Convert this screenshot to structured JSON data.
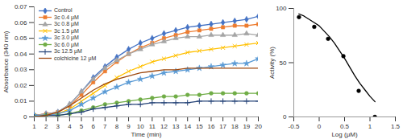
{
  "chart_data": [
    {
      "type": "line",
      "xlabel": "Time (min)",
      "ylabel": "Absorbance (340 nm)",
      "x": [
        1,
        2,
        3,
        4,
        5,
        6,
        7,
        8,
        9,
        10,
        11,
        12,
        13,
        14,
        15,
        16,
        17,
        18,
        19,
        20
      ],
      "xlim": [
        1,
        20
      ],
      "xticks": [
        1,
        2,
        3,
        4,
        5,
        6,
        7,
        8,
        9,
        10,
        11,
        12,
        13,
        14,
        15,
        16,
        17,
        18,
        19,
        20
      ],
      "ylim": [
        0,
        0.07
      ],
      "yticks": [
        0,
        0.01,
        0.02,
        0.03,
        0.04,
        0.05,
        0.06,
        0.07
      ],
      "grid": false,
      "legend": "top-left",
      "series": [
        {
          "name": "Control",
          "color": "#4472c4",
          "marker": "diamond",
          "values": [
            0.001,
            0.002,
            0.003,
            0.008,
            0.016,
            0.025,
            0.032,
            0.038,
            0.043,
            0.047,
            0.05,
            0.053,
            0.055,
            0.057,
            0.058,
            0.059,
            0.06,
            0.061,
            0.062,
            0.064
          ]
        },
        {
          "name": "3c 0.4 μM",
          "color": "#ed7d31",
          "marker": "square",
          "values": [
            0.001,
            0.002,
            0.003,
            0.007,
            0.014,
            0.022,
            0.029,
            0.035,
            0.04,
            0.044,
            0.047,
            0.05,
            0.052,
            0.054,
            0.055,
            0.056,
            0.057,
            0.058,
            0.058,
            0.059
          ]
        },
        {
          "name": "3c 0.8 μM",
          "color": "#a5a5a5",
          "marker": "triangle",
          "values": [
            0.001,
            0.002,
            0.003,
            0.008,
            0.016,
            0.024,
            0.031,
            0.036,
            0.04,
            0.043,
            0.046,
            0.048,
            0.05,
            0.051,
            0.051,
            0.052,
            0.052,
            0.052,
            0.053,
            0.052
          ]
        },
        {
          "name": "3c 1.5 μM",
          "color": "#ffc000",
          "marker": "times",
          "values": [
            0.001,
            0.001,
            0.002,
            0.005,
            0.01,
            0.015,
            0.02,
            0.025,
            0.029,
            0.032,
            0.035,
            0.037,
            0.039,
            0.041,
            0.042,
            0.043,
            0.044,
            0.045,
            0.046,
            0.047
          ]
        },
        {
          "name": "3c 3.0 μM",
          "color": "#5b9bd5",
          "marker": "star",
          "values": [
            0.001,
            0.001,
            0.002,
            0.004,
            0.008,
            0.012,
            0.016,
            0.019,
            0.022,
            0.024,
            0.026,
            0.028,
            0.029,
            0.03,
            0.031,
            0.032,
            0.033,
            0.034,
            0.034,
            0.037
          ]
        },
        {
          "name": "3c 6.0 μM",
          "color": "#70ad47",
          "marker": "circle",
          "values": [
            0,
            0.001,
            0.001,
            0.002,
            0.004,
            0.006,
            0.008,
            0.009,
            0.01,
            0.011,
            0.012,
            0.013,
            0.013,
            0.014,
            0.014,
            0.015,
            0.015,
            0.015,
            0.015,
            0.015
          ]
        },
        {
          "name": "3c 12.5 μM",
          "color": "#264478",
          "marker": "plus",
          "values": [
            0,
            0.001,
            0.001,
            0.002,
            0.003,
            0.005,
            0.006,
            0.007,
            0.008,
            0.008,
            0.009,
            0.009,
            0.009,
            0.009,
            0.01,
            0.01,
            0.01,
            0.01,
            0.01,
            0.01
          ]
        },
        {
          "name": "colchicine 12 μM",
          "color": "#9e480e",
          "marker": "none",
          "values": [
            0,
            0.001,
            0.003,
            0.007,
            0.012,
            0.017,
            0.021,
            0.024,
            0.026,
            0.028,
            0.029,
            0.03,
            0.03,
            0.031,
            0.031,
            0.031,
            0.031,
            0.031,
            0.031,
            0.031
          ]
        }
      ]
    },
    {
      "type": "scatter",
      "xlabel": "Log (μM)",
      "ylabel": "Activity (%)",
      "xlim": [
        -0.5,
        1.5
      ],
      "xticks": [
        -0.5,
        0,
        0.5,
        1,
        1.5
      ],
      "ylim": [
        0,
        100
      ],
      "yticks": [
        0,
        50,
        100
      ],
      "grid": false,
      "series": [
        {
          "type": "scatter",
          "color": "#000000",
          "marker": "circle",
          "x": [
            -0.398,
            -0.097,
            0.176,
            0.477,
            0.778,
            1.097
          ],
          "values": [
            92,
            83,
            72,
            56,
            24,
            0
          ]
        },
        {
          "type": "line",
          "color": "#000000",
          "marker": "none",
          "x": [
            -0.4,
            -0.3,
            -0.2,
            -0.1,
            0,
            0.1,
            0.2,
            0.3,
            0.4,
            0.5,
            0.6,
            0.7,
            0.8,
            0.9,
            1.0,
            1.1
          ],
          "values": [
            95,
            93,
            90,
            87,
            84,
            79,
            74,
            68,
            61,
            54,
            46,
            38,
            31,
            25,
            19,
            14
          ]
        }
      ]
    }
  ]
}
